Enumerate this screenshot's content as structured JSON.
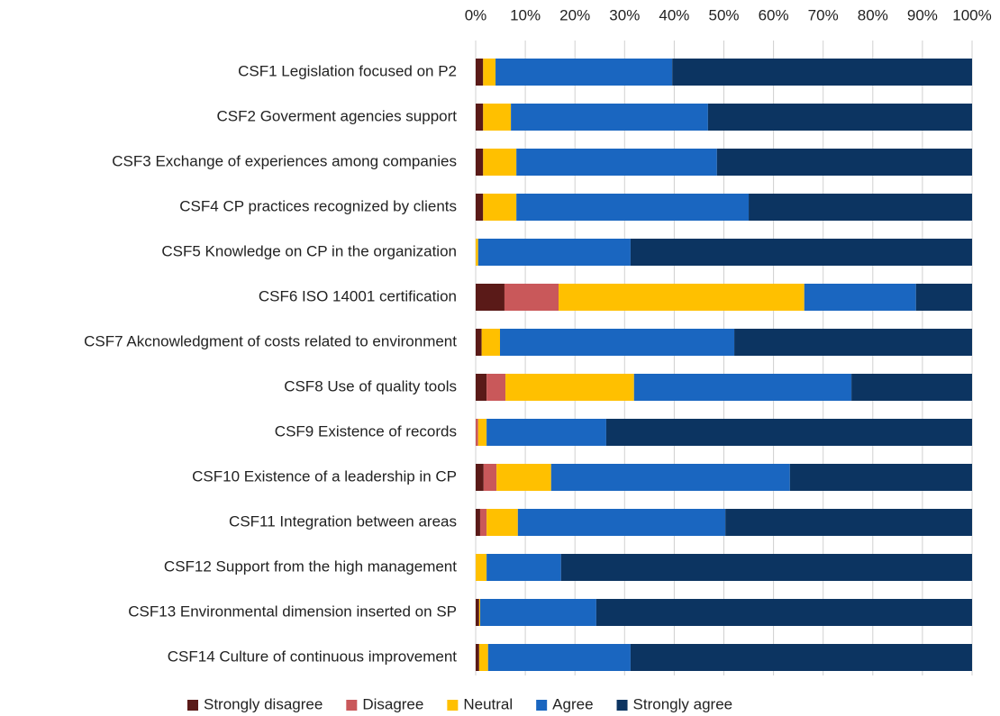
{
  "chart_data": {
    "type": "bar",
    "orientation": "horizontal",
    "stacked": true,
    "categories": [
      "CSF1 Legislation focused on P2",
      "CSF2 Goverment agencies support",
      "CSF3 Exchange of experiences among companies",
      "CSF4 CP practices recognized by clients",
      "CSF5 Knowledge on CP in the organization",
      "CSF6 ISO 14001 certification",
      "CSF7 Akcnowledgment of costs related to environment",
      "CSF8 Use of quality tools",
      "CSF9 Existence of records",
      "CSF10 Existence of a leadership in CP",
      "CSF11 Integration between areas",
      "CSF12 Support from the high management",
      "CSF13 Environmental dimension inserted on SP",
      "CSF14 Culture of continuous improvement"
    ],
    "series": [
      {
        "name": "Strongly disagree",
        "color": "#5a1a18",
        "values": [
          1.5,
          1.5,
          1.5,
          1.5,
          0,
          5.8,
          1.2,
          2.2,
          0,
          1.6,
          0.9,
          0,
          0.7,
          0.7
        ]
      },
      {
        "name": "Disagree",
        "color": "#c9585a",
        "values": [
          0,
          0,
          0,
          0,
          0,
          10.9,
          0,
          3.8,
          0.5,
          2.6,
          1.3,
          0,
          0,
          0
        ]
      },
      {
        "name": "Neutral",
        "color": "#ffc000",
        "values": [
          2.5,
          5.6,
          6.7,
          6.7,
          0.5,
          49.5,
          3.7,
          25.9,
          1.7,
          11,
          6.3,
          2.2,
          0.2,
          1.8
        ]
      },
      {
        "name": "Agree",
        "color": "#1a66c0",
        "values": [
          35.6,
          39.7,
          40.4,
          46.8,
          30.7,
          22.5,
          47.2,
          43.8,
          24.1,
          48.1,
          41.8,
          15,
          23.4,
          28.7
        ]
      },
      {
        "name": "Strongly agree",
        "color": "#0c3461",
        "values": [
          60.4,
          53.2,
          51.4,
          45,
          68.8,
          11.3,
          47.9,
          24.3,
          73.7,
          36.7,
          49.7,
          82.8,
          75.7,
          68.8
        ]
      }
    ],
    "xlim": [
      0,
      100
    ],
    "xticks": [
      {
        "value": 0,
        "label": "0%"
      },
      {
        "value": 10,
        "label": "10%"
      },
      {
        "value": 20,
        "label": "20%"
      },
      {
        "value": 30,
        "label": "30%"
      },
      {
        "value": 40,
        "label": "40%"
      },
      {
        "value": 50,
        "label": "50%"
      },
      {
        "value": 60,
        "label": "60%"
      },
      {
        "value": 70,
        "label": "70%"
      },
      {
        "value": 80,
        "label": "80%"
      },
      {
        "value": 90,
        "label": "90%"
      },
      {
        "value": 100,
        "label": "100%"
      }
    ],
    "grid": true,
    "legend": "bottom"
  }
}
